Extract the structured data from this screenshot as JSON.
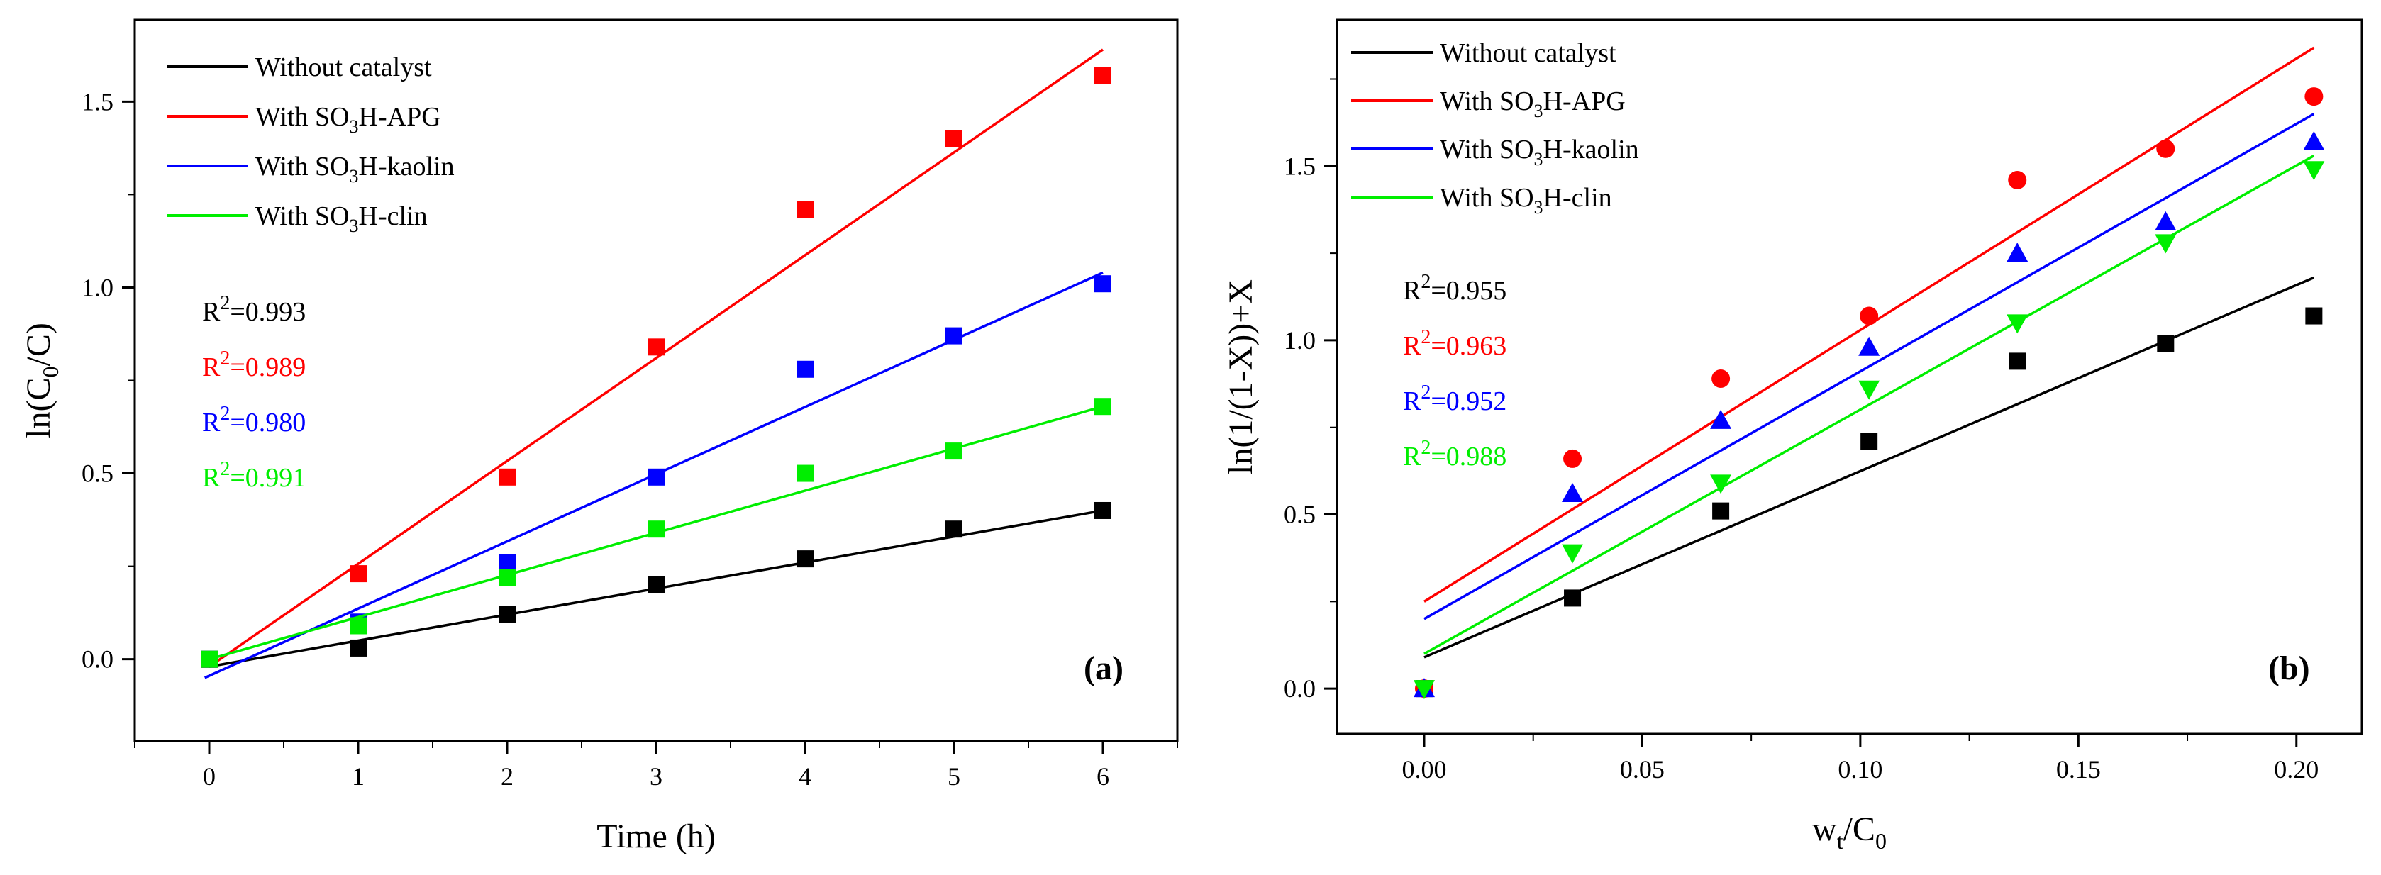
{
  "figure": {
    "background": "#ffffff"
  },
  "series_styles": [
    {
      "key": "without",
      "label_text": "Without catalyst",
      "color": "#000000"
    },
    {
      "key": "apg",
      "label_pre": "With SO",
      "label_sub": "3",
      "label_post": "H-APG",
      "color": "#ff0000"
    },
    {
      "key": "kaolin",
      "label_pre": "With SO",
      "label_sub": "3",
      "label_post": "H-kaolin",
      "color": "#0000ff"
    },
    {
      "key": "clin",
      "label_pre": "With SO",
      "label_sub": "3",
      "label_post": "H-clin",
      "color": "#00ee00"
    }
  ],
  "chart_data": [
    {
      "panel": "(a)",
      "type": "scatter",
      "xlabel_pre": "Time (h)",
      "ylabel_pre": "ln(C",
      "ylabel_sub": "0",
      "ylabel_post": "/C)",
      "xlim": [
        -0.5,
        6.5
      ],
      "ylim": [
        -0.22,
        1.72
      ],
      "xticks": [
        0,
        1,
        2,
        3,
        4,
        5,
        6
      ],
      "xtick_labels": [
        "0",
        "1",
        "2",
        "3",
        "4",
        "5",
        "6"
      ],
      "yticks": [
        0.0,
        0.5,
        1.0,
        1.5
      ],
      "ytick_labels": [
        "0.0",
        "0.5",
        "1.0",
        "1.5"
      ],
      "series": [
        {
          "key": "without",
          "marker": "square",
          "x": [
            0,
            1,
            2,
            3,
            4,
            5,
            6
          ],
          "y": [
            0.0,
            0.03,
            0.12,
            0.2,
            0.27,
            0.35,
            0.4
          ],
          "fit": {
            "x": [
              0,
              6
            ],
            "y": [
              -0.02,
              0.4
            ]
          },
          "r2": "=0.993"
        },
        {
          "key": "apg",
          "marker": "square",
          "x": [
            0,
            1,
            2,
            3,
            4,
            5,
            6
          ],
          "y": [
            0.0,
            0.23,
            0.49,
            0.84,
            1.21,
            1.4,
            1.57
          ],
          "fit": {
            "x": [
              0,
              6
            ],
            "y": [
              -0.02,
              1.64
            ]
          },
          "r2": "=0.989"
        },
        {
          "key": "kaolin",
          "marker": "square",
          "x": [
            0,
            1,
            2,
            3,
            4,
            5,
            6
          ],
          "y": [
            0.0,
            0.1,
            0.26,
            0.49,
            0.78,
            0.87,
            1.01
          ],
          "fit": {
            "x": [
              -0.03,
              6
            ],
            "y": [
              -0.05,
              1.04
            ]
          },
          "r2": "=0.980"
        },
        {
          "key": "clin",
          "marker": "square",
          "x": [
            0,
            1,
            2,
            3,
            4,
            5,
            6
          ],
          "y": [
            0.0,
            0.09,
            0.22,
            0.35,
            0.5,
            0.56,
            0.68
          ],
          "fit": {
            "x": [
              0,
              6
            ],
            "y": [
              0.0,
              0.68
            ]
          },
          "r2": "=0.991"
        }
      ]
    },
    {
      "panel": "(b)",
      "type": "scatter",
      "xlabel_pre": "w",
      "xlabel_sub": "t",
      "xlabel_post": "/C",
      "xlabel_sub2": "0",
      "ylabel_pre": "ln(1/(1-X))+X",
      "xlim": [
        -0.02,
        0.215
      ],
      "ylim": [
        -0.13,
        1.92
      ],
      "xticks": [
        0.0,
        0.05,
        0.1,
        0.15,
        0.2
      ],
      "xtick_labels": [
        "0.00",
        "0.05",
        "0.10",
        "0.15",
        "0.20"
      ],
      "yticks": [
        0.0,
        0.5,
        1.0,
        1.5
      ],
      "ytick_labels": [
        "0.0",
        "0.5",
        "1.0",
        "1.5"
      ],
      "series": [
        {
          "key": "without",
          "marker": "square",
          "x": [
            0.0,
            0.034,
            0.068,
            0.102,
            0.136,
            0.17,
            0.204
          ],
          "y": [
            0.0,
            0.26,
            0.51,
            0.71,
            0.94,
            0.99,
            1.07
          ],
          "fit": {
            "x": [
              0.0,
              0.204
            ],
            "y": [
              0.09,
              1.18
            ]
          },
          "r2": "=0.955"
        },
        {
          "key": "apg",
          "marker": "circle",
          "x": [
            0.0,
            0.034,
            0.068,
            0.102,
            0.136,
            0.17,
            0.204
          ],
          "y": [
            0.0,
            0.66,
            0.89,
            1.07,
            1.46,
            1.55,
            1.7
          ],
          "fit": {
            "x": [
              0.0,
              0.204
            ],
            "y": [
              0.25,
              1.84
            ]
          },
          "r2": "=0.963"
        },
        {
          "key": "kaolin",
          "marker": "triangle-up",
          "x": [
            0.0,
            0.034,
            0.068,
            0.102,
            0.136,
            0.17,
            0.204
          ],
          "y": [
            0.0,
            0.56,
            0.77,
            0.98,
            1.25,
            1.34,
            1.57
          ],
          "fit": {
            "x": [
              0.0,
              0.204
            ],
            "y": [
              0.2,
              1.65
            ]
          },
          "r2": "=0.952"
        },
        {
          "key": "clin",
          "marker": "triangle-down",
          "x": [
            0.0,
            0.034,
            0.068,
            0.102,
            0.136,
            0.17,
            0.204
          ],
          "y": [
            0.0,
            0.39,
            0.59,
            0.86,
            1.05,
            1.28,
            1.49
          ],
          "fit": {
            "x": [
              0.0,
              0.204
            ],
            "y": [
              0.1,
              1.53
            ]
          },
          "r2": "=0.988"
        }
      ]
    }
  ],
  "r2_label": {
    "pre": "R",
    "sup": "2"
  }
}
